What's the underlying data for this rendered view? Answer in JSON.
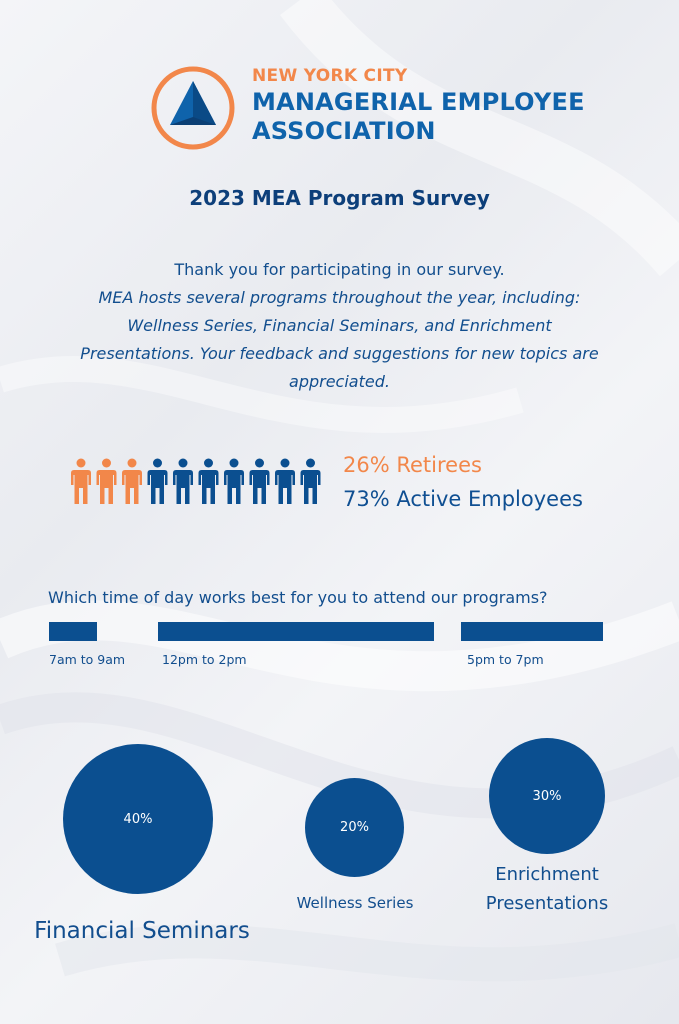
{
  "logo": {
    "city": "NEW YORK CITY",
    "line1": "MANAGERIAL EMPLOYEE",
    "line2": "ASSOCIATION"
  },
  "title": "2023 MEA Program Survey",
  "intro": {
    "thanks": "Thank you for participating in our survey.",
    "body": "MEA hosts several programs throughout the year, including: Wellness Series, Financial Seminars, and Enrichment Presentations.  Your feedback and suggestions for new topics are appreciated."
  },
  "demographics": {
    "retirees": "26% Retirees",
    "active": "73% Active Employees",
    "retiree_icons": 3,
    "active_icons": 7,
    "colors": {
      "retiree": "#f2874a",
      "active": "#0b4f90"
    }
  },
  "time_of_day": {
    "question": "Which time of day works best for you to attend our programs?",
    "options": [
      {
        "label": "7am to 9am"
      },
      {
        "label": "12pm to 2pm"
      },
      {
        "label": "5pm to 7pm"
      }
    ]
  },
  "programs": [
    {
      "name": "Financial Seminars",
      "percent": "40%"
    },
    {
      "name": "Wellness Series",
      "percent": "20%"
    },
    {
      "name": "Enrichment Presentations",
      "percent": "30%"
    }
  ]
}
